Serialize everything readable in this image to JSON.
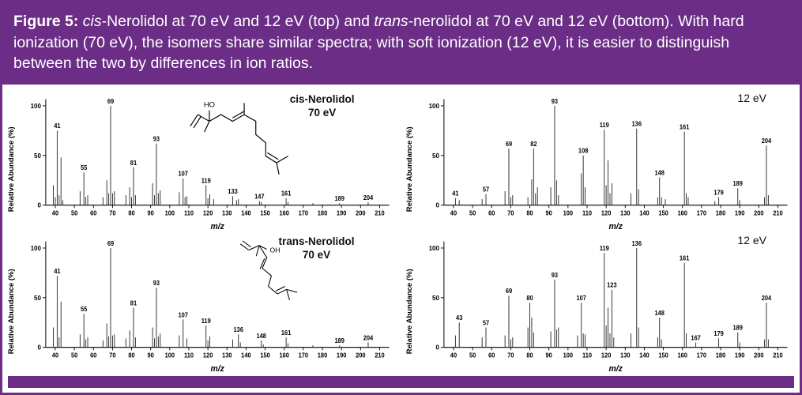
{
  "header": {
    "segments": [
      {
        "text": "Figure 5: ",
        "bold": true
      },
      {
        "text": "cis",
        "italic": true
      },
      {
        "text": "-Nerolidol at 70 eV and 12 eV (top) and "
      },
      {
        "text": "trans",
        "italic": true
      },
      {
        "text": "-nerolidol at 70 eV and 12 eV (bottom). With hard ionization (70 eV), the isomers share similar spectra; with soft ionization (12 eV), it is easier to distinguish between the two by differences in ion ratios."
      }
    ]
  },
  "colors": {
    "purple": "#6B2D86",
    "peak": "#222222"
  },
  "axes": {
    "ylabel": "Relative Abundance (%)",
    "xlabel": "m/z"
  },
  "panels": [
    {
      "id": "cis-70ev",
      "title_italic": "cis",
      "title_rest": "-Nerolidol",
      "title_line2": "70 eV",
      "structure_label": "HO"
    },
    {
      "id": "cis-12ev",
      "title_italic": "",
      "title_rest": "",
      "title_line2": "12 eV"
    },
    {
      "id": "trans-70ev",
      "title_italic": "trans",
      "title_rest": "-Nerolidol",
      "title_line2": "70 eV",
      "structure_label": "OH"
    },
    {
      "id": "trans-12ev",
      "title_italic": "",
      "title_rest": "",
      "title_line2": "12 eV"
    }
  ],
  "chart_data": [
    {
      "type": "bar",
      "subtype": "mass-spectrum",
      "title": "cis-Nerolidol 70 eV",
      "xlabel": "m/z",
      "ylabel": "Relative Abundance (%)",
      "xlim": [
        35,
        215
      ],
      "ylim": [
        0,
        100
      ],
      "x_ticks": [
        40,
        50,
        60,
        70,
        80,
        90,
        100,
        110,
        120,
        130,
        140,
        150,
        160,
        170,
        180,
        190,
        200,
        210
      ],
      "y_ticks": [
        0,
        50,
        100
      ],
      "peaks": [
        [
          39,
          20
        ],
        [
          40,
          8
        ],
        [
          41,
          75,
          "41"
        ],
        [
          42,
          10
        ],
        [
          43,
          48
        ],
        [
          44,
          5
        ],
        [
          53,
          14
        ],
        [
          55,
          33,
          "55"
        ],
        [
          56,
          8
        ],
        [
          57,
          10
        ],
        [
          65,
          8
        ],
        [
          67,
          25
        ],
        [
          68,
          12
        ],
        [
          69,
          100,
          "69"
        ],
        [
          70,
          12
        ],
        [
          71,
          14
        ],
        [
          77,
          10
        ],
        [
          79,
          18
        ],
        [
          80,
          8
        ],
        [
          81,
          38,
          "81"
        ],
        [
          82,
          10
        ],
        [
          91,
          22
        ],
        [
          92,
          10
        ],
        [
          93,
          62,
          "93"
        ],
        [
          94,
          12
        ],
        [
          95,
          15
        ],
        [
          105,
          13
        ],
        [
          107,
          27,
          "107"
        ],
        [
          108,
          8
        ],
        [
          109,
          9
        ],
        [
          119,
          20,
          "119"
        ],
        [
          120,
          7
        ],
        [
          121,
          11
        ],
        [
          123,
          6
        ],
        [
          133,
          9,
          "133"
        ],
        [
          135,
          5
        ],
        [
          136,
          6
        ],
        [
          147,
          4,
          "147"
        ],
        [
          148,
          3
        ],
        [
          161,
          7,
          "161"
        ],
        [
          162,
          3
        ],
        [
          175,
          2
        ],
        [
          189,
          2,
          "189"
        ],
        [
          204,
          3,
          "204"
        ]
      ]
    },
    {
      "type": "bar",
      "subtype": "mass-spectrum",
      "title": "cis-Nerolidol 12 eV",
      "xlabel": "m/z",
      "ylabel": "Relative Abundance (%)",
      "xlim": [
        35,
        215
      ],
      "ylim": [
        0,
        100
      ],
      "x_ticks": [
        40,
        50,
        60,
        70,
        80,
        90,
        100,
        110,
        120,
        130,
        140,
        150,
        160,
        170,
        180,
        190,
        200,
        210
      ],
      "y_ticks": [
        0,
        50,
        100
      ],
      "peaks": [
        [
          41,
          7,
          "41"
        ],
        [
          43,
          5
        ],
        [
          55,
          6
        ],
        [
          57,
          11,
          "57"
        ],
        [
          67,
          14
        ],
        [
          69,
          57,
          "69"
        ],
        [
          70,
          8
        ],
        [
          71,
          10
        ],
        [
          79,
          8
        ],
        [
          81,
          26
        ],
        [
          82,
          57,
          "82"
        ],
        [
          83,
          12
        ],
        [
          84,
          18
        ],
        [
          91,
          18
        ],
        [
          93,
          100,
          "93"
        ],
        [
          94,
          25
        ],
        [
          95,
          10
        ],
        [
          107,
          32
        ],
        [
          108,
          50,
          "108"
        ],
        [
          109,
          18
        ],
        [
          119,
          76,
          "119"
        ],
        [
          120,
          20
        ],
        [
          121,
          45
        ],
        [
          122,
          12
        ],
        [
          123,
          22
        ],
        [
          133,
          12
        ],
        [
          136,
          77,
          "136"
        ],
        [
          137,
          16
        ],
        [
          147,
          8
        ],
        [
          148,
          28,
          "148"
        ],
        [
          149,
          8
        ],
        [
          151,
          6
        ],
        [
          161,
          74,
          "161"
        ],
        [
          162,
          12
        ],
        [
          163,
          8
        ],
        [
          177,
          4
        ],
        [
          179,
          8,
          "179"
        ],
        [
          189,
          17,
          "189"
        ],
        [
          190,
          5
        ],
        [
          203,
          8
        ],
        [
          204,
          60,
          "204"
        ],
        [
          205,
          10
        ]
      ]
    },
    {
      "type": "bar",
      "subtype": "mass-spectrum",
      "title": "trans-Nerolidol 70 eV",
      "xlabel": "m/z",
      "ylabel": "Relative Abundance (%)",
      "xlim": [
        35,
        215
      ],
      "ylim": [
        0,
        100
      ],
      "x_ticks": [
        40,
        50,
        60,
        70,
        80,
        90,
        100,
        110,
        120,
        130,
        140,
        150,
        160,
        170,
        180,
        190,
        200,
        210
      ],
      "y_ticks": [
        0,
        50,
        100
      ],
      "peaks": [
        [
          39,
          20
        ],
        [
          41,
          72,
          "41"
        ],
        [
          42,
          10
        ],
        [
          43,
          46
        ],
        [
          53,
          13
        ],
        [
          55,
          34,
          "55"
        ],
        [
          56,
          8
        ],
        [
          57,
          10
        ],
        [
          65,
          7
        ],
        [
          67,
          24
        ],
        [
          68,
          11
        ],
        [
          69,
          100,
          "69"
        ],
        [
          70,
          12
        ],
        [
          71,
          13
        ],
        [
          77,
          9
        ],
        [
          79,
          17
        ],
        [
          81,
          40,
          "81"
        ],
        [
          82,
          10
        ],
        [
          91,
          20
        ],
        [
          92,
          9
        ],
        [
          93,
          60,
          "93"
        ],
        [
          94,
          11
        ],
        [
          95,
          14
        ],
        [
          105,
          12
        ],
        [
          107,
          28,
          "107"
        ],
        [
          109,
          9
        ],
        [
          119,
          22,
          "119"
        ],
        [
          120,
          7
        ],
        [
          121,
          11
        ],
        [
          133,
          8
        ],
        [
          136,
          13,
          "136"
        ],
        [
          137,
          5
        ],
        [
          148,
          7,
          "148"
        ],
        [
          149,
          3
        ],
        [
          161,
          10,
          "161"
        ],
        [
          162,
          4
        ],
        [
          175,
          2
        ],
        [
          189,
          2,
          "189"
        ],
        [
          204,
          5,
          "204"
        ]
      ]
    },
    {
      "type": "bar",
      "subtype": "mass-spectrum",
      "title": "trans-Nerolidol 12 eV",
      "xlabel": "m/z",
      "ylabel": "Relative Abundance (%)",
      "xlim": [
        35,
        215
      ],
      "ylim": [
        0,
        100
      ],
      "x_ticks": [
        40,
        50,
        60,
        70,
        80,
        90,
        100,
        110,
        120,
        130,
        140,
        150,
        160,
        170,
        180,
        190,
        200,
        210
      ],
      "y_ticks": [
        0,
        50,
        100
      ],
      "peaks": [
        [
          41,
          12
        ],
        [
          43,
          25,
          "43"
        ],
        [
          55,
          10
        ],
        [
          57,
          20,
          "57"
        ],
        [
          67,
          12
        ],
        [
          69,
          52,
          "69"
        ],
        [
          70,
          8
        ],
        [
          71,
          10
        ],
        [
          79,
          20
        ],
        [
          80,
          45,
          "80"
        ],
        [
          81,
          30
        ],
        [
          82,
          15
        ],
        [
          91,
          16
        ],
        [
          93,
          68,
          "93"
        ],
        [
          94,
          18
        ],
        [
          95,
          20
        ],
        [
          105,
          12
        ],
        [
          107,
          45,
          "107"
        ],
        [
          108,
          14
        ],
        [
          109,
          13
        ],
        [
          119,
          95,
          "119"
        ],
        [
          120,
          22
        ],
        [
          121,
          40
        ],
        [
          122,
          14
        ],
        [
          123,
          58,
          "123"
        ],
        [
          124,
          10
        ],
        [
          133,
          14
        ],
        [
          136,
          100,
          "136"
        ],
        [
          137,
          20
        ],
        [
          147,
          10
        ],
        [
          148,
          30,
          "148"
        ],
        [
          149,
          8
        ],
        [
          161,
          85,
          "161"
        ],
        [
          162,
          14
        ],
        [
          167,
          5,
          "167"
        ],
        [
          179,
          9,
          "179"
        ],
        [
          189,
          15,
          "189"
        ],
        [
          190,
          5
        ],
        [
          203,
          8
        ],
        [
          204,
          45,
          "204"
        ],
        [
          205,
          8
        ]
      ]
    }
  ]
}
